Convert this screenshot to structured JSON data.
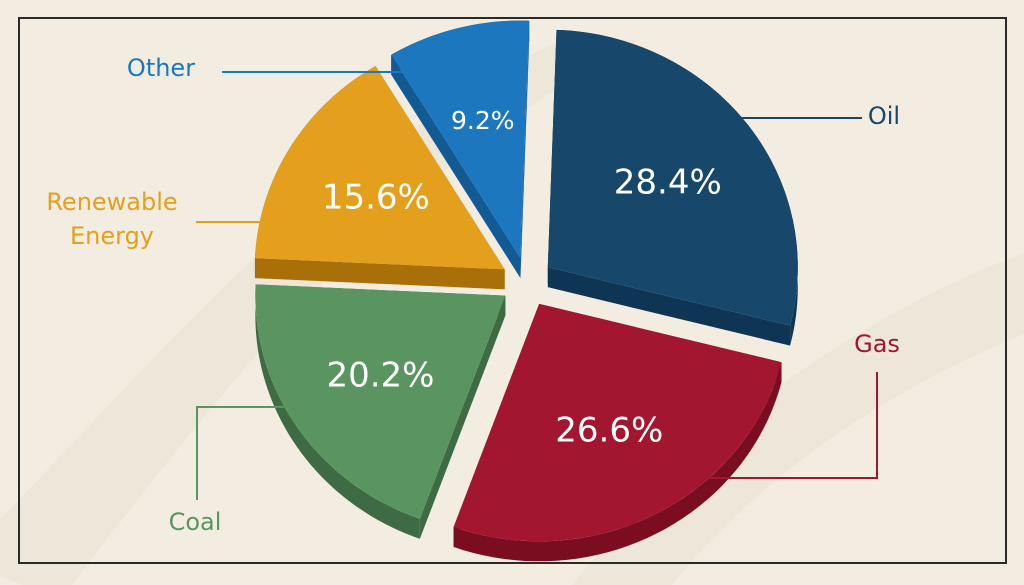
{
  "chart_data": {
    "type": "pie",
    "style": "3d-exploded",
    "title": "",
    "slices": [
      {
        "label": "Oil",
        "value": 28.4,
        "value_label": "28.4%",
        "color": "#17476a",
        "side_color": "#0e3553"
      },
      {
        "label": "Gas",
        "value": 26.6,
        "value_label": "26.6%",
        "color": "#a3162f",
        "side_color": "#7a0d20"
      },
      {
        "label": "Coal",
        "value": 20.2,
        "value_label": "20.2%",
        "color": "#5a9460",
        "side_color": "#3e6b43"
      },
      {
        "label": "Renewable Energy",
        "label_lines": [
          "Renewable",
          "Energy"
        ],
        "value": 15.6,
        "value_label": "15.6%",
        "color": "#e49f1c",
        "side_color": "#a9700a"
      },
      {
        "label": "Other",
        "value": 9.2,
        "value_label": "9.2%",
        "color": "#1c77be",
        "side_color": "#125a94"
      }
    ]
  },
  "colors": {
    "background": "#f3ede1",
    "background_band": "#e9e2d3",
    "frame_border": "#2a2a2a",
    "value_text": "#ffffff"
  }
}
